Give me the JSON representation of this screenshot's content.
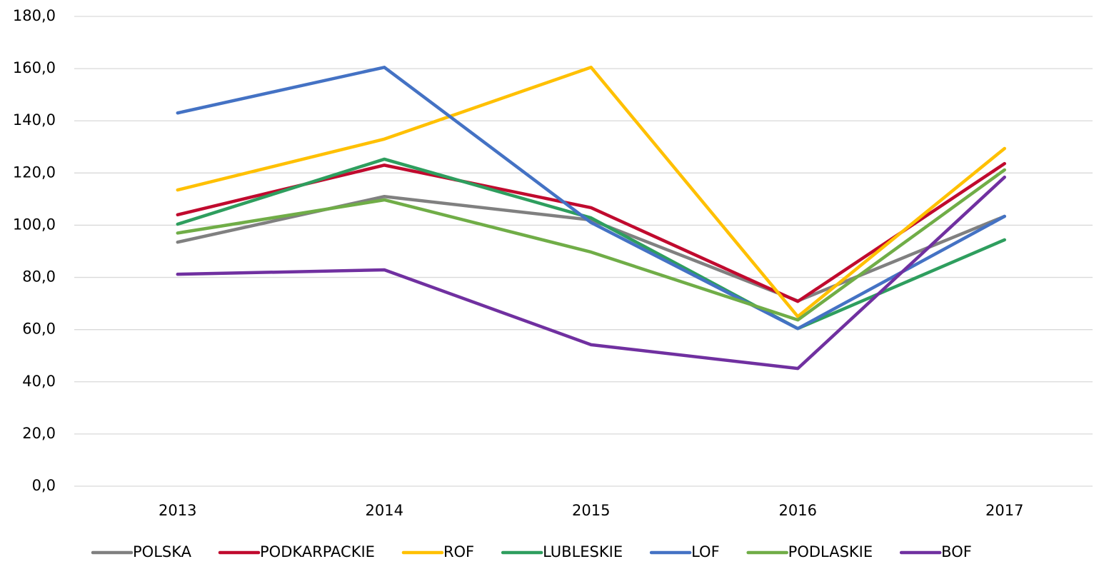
{
  "chart_data": {
    "type": "line",
    "categories": [
      "2013",
      "2014",
      "2015",
      "2016",
      "2017"
    ],
    "series": [
      {
        "name": "POLSKA",
        "color": "#808080",
        "values": [
          93.5,
          111.0,
          102.0,
          71.0,
          103.4
        ]
      },
      {
        "name": "PODKARPACKIE",
        "color": "#c00a2e",
        "values": [
          104.0,
          123.0,
          106.7,
          70.8,
          123.6
        ]
      },
      {
        "name": "ROF",
        "color": "#ffc000",
        "values": [
          113.5,
          133.0,
          160.5,
          65.0,
          129.4
        ]
      },
      {
        "name": "LUBLESKIE",
        "color": "#2e9e5e",
        "values": [
          100.4,
          125.3,
          102.8,
          60.4,
          94.4
        ]
      },
      {
        "name": "LOF",
        "color": "#4472c4",
        "values": [
          143.0,
          160.5,
          101.0,
          60.4,
          103.4
        ]
      },
      {
        "name": "PODLASKIE",
        "color": "#70ad47",
        "values": [
          97.0,
          109.7,
          89.7,
          63.7,
          121.2
        ]
      },
      {
        "name": "BOF",
        "color": "#7030a0",
        "values": [
          81.2,
          82.9,
          54.2,
          45.1,
          118.4
        ]
      }
    ],
    "ylim": [
      0,
      180
    ],
    "yticks": [
      {
        "value": 0,
        "label": "0,0"
      },
      {
        "value": 20,
        "label": "20,0"
      },
      {
        "value": 40,
        "label": "40,0"
      },
      {
        "value": 60,
        "label": "60,0"
      },
      {
        "value": 80,
        "label": "80,0"
      },
      {
        "value": 100,
        "label": "100,0"
      },
      {
        "value": 120,
        "label": "120,0"
      },
      {
        "value": 140,
        "label": "140,0"
      },
      {
        "value": 160,
        "label": "160,0"
      },
      {
        "value": 180,
        "label": "180,0"
      }
    ],
    "grid": true,
    "legend": "bottom"
  }
}
